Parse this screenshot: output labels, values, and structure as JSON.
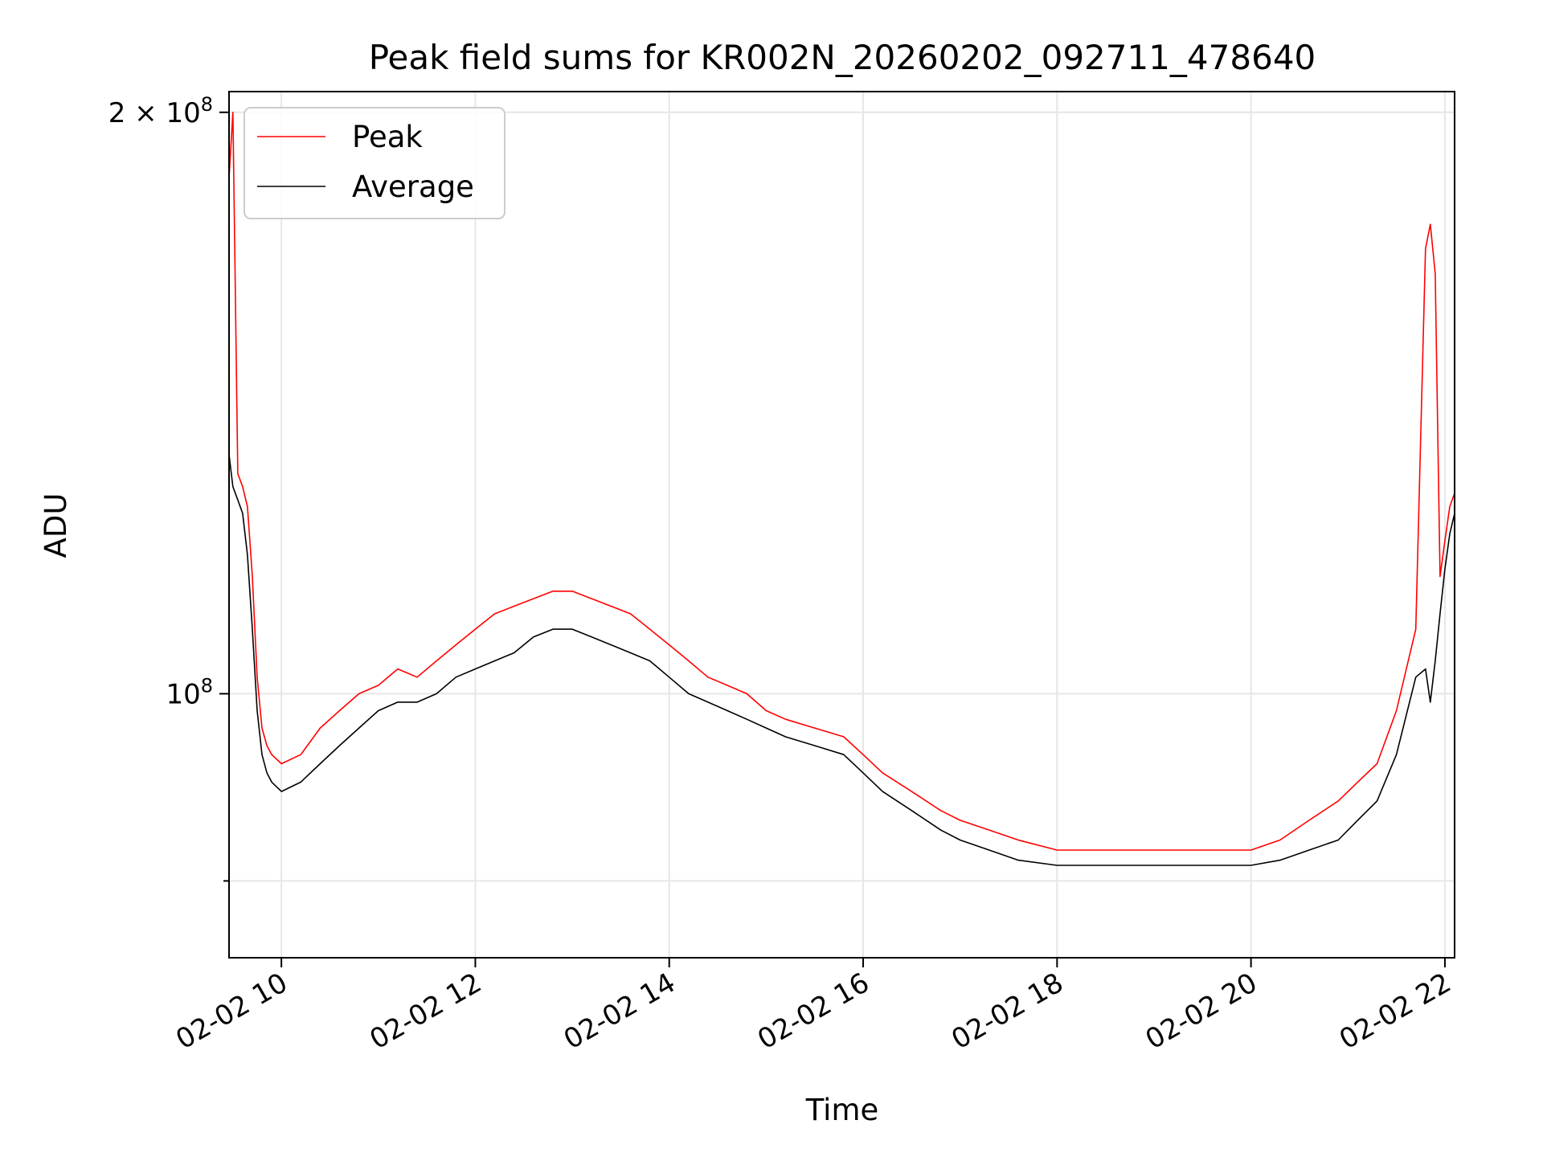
{
  "chart_data": {
    "type": "line",
    "title": "Peak field sums for KR002N_20260202_092711_478640",
    "xlabel": "Time",
    "ylabel": "ADU",
    "yscale": "log",
    "xlim": [
      9.46,
      22.1
    ],
    "ylim": [
      73000000,
      205000000
    ],
    "grid": true,
    "legend_position": "top-left",
    "x_ticks": [
      {
        "value": 10,
        "label": "02-02 10"
      },
      {
        "value": 12,
        "label": "02-02 12"
      },
      {
        "value": 14,
        "label": "02-02 14"
      },
      {
        "value": 16,
        "label": "02-02 16"
      },
      {
        "value": 18,
        "label": "02-02 18"
      },
      {
        "value": 20,
        "label": "02-02 20"
      },
      {
        "value": 22,
        "label": "02-02 22"
      }
    ],
    "y_ticks_labeled": [
      {
        "value": 100000000,
        "base": "10",
        "exp": "8"
      },
      {
        "value": 200000000,
        "base": "2 × 10",
        "exp": "8"
      }
    ],
    "y_ticks_minor": [
      80000000
    ],
    "series": [
      {
        "name": "Peak",
        "color": "#ff0000",
        "x": [
          9.46,
          9.5,
          9.55,
          9.6,
          9.65,
          9.7,
          9.75,
          9.8,
          9.85,
          9.9,
          10.0,
          10.2,
          10.4,
          10.6,
          10.8,
          11.0,
          11.2,
          11.4,
          11.6,
          11.8,
          12.0,
          12.2,
          12.4,
          12.6,
          12.8,
          13.0,
          13.2,
          13.4,
          13.6,
          13.8,
          14.0,
          14.2,
          14.4,
          14.6,
          14.8,
          15.0,
          15.2,
          15.5,
          15.8,
          16.0,
          16.2,
          16.5,
          16.8,
          17.0,
          17.3,
          17.6,
          18.0,
          18.5,
          19.0,
          19.5,
          20.0,
          20.3,
          20.6,
          20.9,
          21.1,
          21.3,
          21.5,
          21.7,
          21.8,
          21.85,
          21.9,
          21.95,
          22.0,
          22.05,
          22.1
        ],
        "y": [
          185000000,
          200000000,
          130000000,
          128000000,
          125000000,
          115000000,
          102000000,
          96000000,
          94000000,
          93000000,
          92000000,
          93000000,
          96000000,
          98000000,
          100000000,
          101000000,
          103000000,
          102000000,
          104000000,
          106000000,
          108000000,
          110000000,
          111000000,
          112000000,
          113000000,
          113000000,
          112000000,
          111000000,
          110000000,
          108000000,
          106000000,
          104000000,
          102000000,
          101000000,
          100000000,
          98000000,
          97000000,
          96000000,
          95000000,
          93000000,
          91000000,
          89000000,
          87000000,
          86000000,
          85000000,
          84000000,
          83000000,
          83000000,
          83000000,
          83000000,
          83000000,
          84000000,
          86000000,
          88000000,
          90000000,
          92000000,
          98000000,
          108000000,
          170000000,
          175000000,
          165000000,
          115000000,
          120000000,
          125000000,
          127000000
        ]
      },
      {
        "name": "Average",
        "color": "#000000",
        "x": [
          9.46,
          9.5,
          9.55,
          9.6,
          9.65,
          9.7,
          9.75,
          9.8,
          9.85,
          9.9,
          10.0,
          10.2,
          10.4,
          10.6,
          10.8,
          11.0,
          11.2,
          11.4,
          11.6,
          11.8,
          12.0,
          12.2,
          12.4,
          12.6,
          12.8,
          13.0,
          13.2,
          13.4,
          13.6,
          13.8,
          14.0,
          14.2,
          14.4,
          14.6,
          14.8,
          15.0,
          15.2,
          15.5,
          15.8,
          16.0,
          16.2,
          16.5,
          16.8,
          17.0,
          17.3,
          17.6,
          18.0,
          18.5,
          19.0,
          19.5,
          20.0,
          20.3,
          20.6,
          20.9,
          21.1,
          21.3,
          21.5,
          21.7,
          21.8,
          21.85,
          21.9,
          21.95,
          22.0,
          22.05,
          22.1
        ],
        "y": [
          133000000,
          128000000,
          126000000,
          124000000,
          118000000,
          108000000,
          98000000,
          93000000,
          91000000,
          90000000,
          89000000,
          90000000,
          92000000,
          94000000,
          96000000,
          98000000,
          99000000,
          99000000,
          100000000,
          102000000,
          103000000,
          104000000,
          105000000,
          107000000,
          108000000,
          108000000,
          107000000,
          106000000,
          105000000,
          104000000,
          102000000,
          100000000,
          99000000,
          98000000,
          97000000,
          96000000,
          95000000,
          94000000,
          93000000,
          91000000,
          89000000,
          87000000,
          85000000,
          84000000,
          83000000,
          82000000,
          81500000,
          81500000,
          81500000,
          81500000,
          81500000,
          82000000,
          83000000,
          84000000,
          86000000,
          88000000,
          93000000,
          102000000,
          103000000,
          99000000,
          104000000,
          110000000,
          116000000,
          121000000,
          124000000
        ]
      }
    ]
  }
}
